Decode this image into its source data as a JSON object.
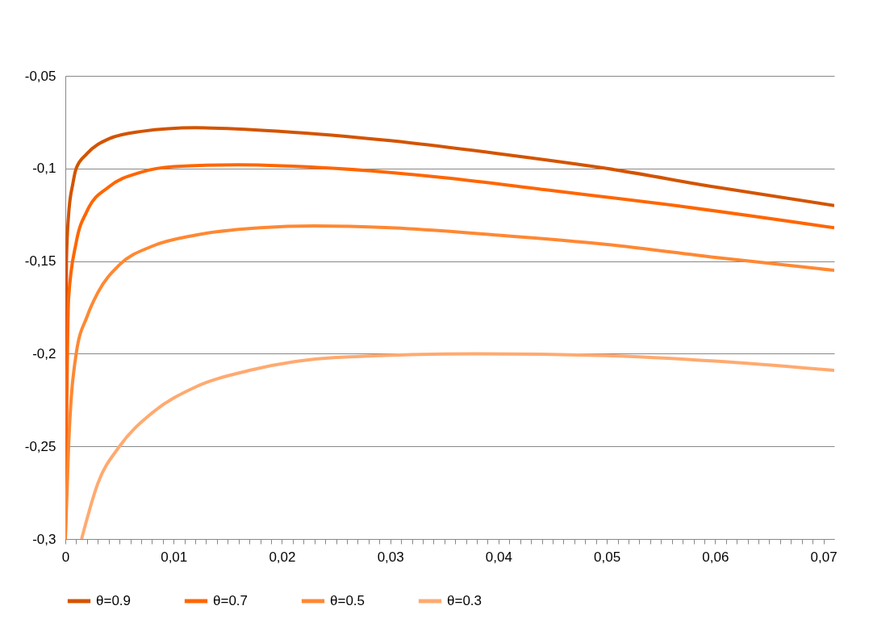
{
  "chart_data": {
    "type": "line",
    "xlim": [
      0,
      0.071
    ],
    "ylim": [
      -0.3,
      -0.05
    ],
    "xticks": [
      {
        "value": 0,
        "label": "0"
      },
      {
        "value": 0.001,
        "label": null
      },
      {
        "value": 0.002,
        "label": null
      },
      {
        "value": 0.003,
        "label": null
      },
      {
        "value": 0.004,
        "label": null
      },
      {
        "value": 0.005,
        "label": null
      },
      {
        "value": 0.006,
        "label": null
      },
      {
        "value": 0.007,
        "label": null
      },
      {
        "value": 0.008,
        "label": null
      },
      {
        "value": 0.009,
        "label": null
      },
      {
        "value": 0.01,
        "label": "0,01"
      },
      {
        "value": 0.011,
        "label": null
      },
      {
        "value": 0.012,
        "label": null
      },
      {
        "value": 0.013,
        "label": null
      },
      {
        "value": 0.014,
        "label": null
      },
      {
        "value": 0.015,
        "label": null
      },
      {
        "value": 0.016,
        "label": null
      },
      {
        "value": 0.017,
        "label": null
      },
      {
        "value": 0.018,
        "label": null
      },
      {
        "value": 0.019,
        "label": null
      },
      {
        "value": 0.02,
        "label": "0,02"
      },
      {
        "value": 0.021,
        "label": null
      },
      {
        "value": 0.022,
        "label": null
      },
      {
        "value": 0.023,
        "label": null
      },
      {
        "value": 0.024,
        "label": null
      },
      {
        "value": 0.025,
        "label": null
      },
      {
        "value": 0.026,
        "label": null
      },
      {
        "value": 0.027,
        "label": null
      },
      {
        "value": 0.028,
        "label": null
      },
      {
        "value": 0.029,
        "label": null
      },
      {
        "value": 0.03,
        "label": "0,03"
      },
      {
        "value": 0.031,
        "label": null
      },
      {
        "value": 0.032,
        "label": null
      },
      {
        "value": 0.033,
        "label": null
      },
      {
        "value": 0.034,
        "label": null
      },
      {
        "value": 0.035,
        "label": null
      },
      {
        "value": 0.036,
        "label": null
      },
      {
        "value": 0.037,
        "label": null
      },
      {
        "value": 0.038,
        "label": null
      },
      {
        "value": 0.039,
        "label": null
      },
      {
        "value": 0.04,
        "label": "0,04"
      },
      {
        "value": 0.041,
        "label": null
      },
      {
        "value": 0.042,
        "label": null
      },
      {
        "value": 0.043,
        "label": null
      },
      {
        "value": 0.044,
        "label": null
      },
      {
        "value": 0.045,
        "label": null
      },
      {
        "value": 0.046,
        "label": null
      },
      {
        "value": 0.047,
        "label": null
      },
      {
        "value": 0.048,
        "label": null
      },
      {
        "value": 0.049,
        "label": null
      },
      {
        "value": 0.05,
        "label": "0,05"
      },
      {
        "value": 0.051,
        "label": null
      },
      {
        "value": 0.052,
        "label": null
      },
      {
        "value": 0.053,
        "label": null
      },
      {
        "value": 0.054,
        "label": null
      },
      {
        "value": 0.055,
        "label": null
      },
      {
        "value": 0.056,
        "label": null
      },
      {
        "value": 0.057,
        "label": null
      },
      {
        "value": 0.058,
        "label": null
      },
      {
        "value": 0.059,
        "label": null
      },
      {
        "value": 0.06,
        "label": "0,06"
      },
      {
        "value": 0.061,
        "label": null
      },
      {
        "value": 0.062,
        "label": null
      },
      {
        "value": 0.063,
        "label": null
      },
      {
        "value": 0.064,
        "label": null
      },
      {
        "value": 0.065,
        "label": null
      },
      {
        "value": 0.066,
        "label": null
      },
      {
        "value": 0.067,
        "label": null
      },
      {
        "value": 0.068,
        "label": null
      },
      {
        "value": 0.069,
        "label": null
      },
      {
        "value": 0.07,
        "label": "0,07"
      }
    ],
    "yticks": [
      {
        "value": -0.3,
        "label": "-0,3"
      },
      {
        "value": -0.25,
        "label": "-0,25"
      },
      {
        "value": -0.2,
        "label": "-0,2"
      },
      {
        "value": -0.15,
        "label": "-0,15"
      },
      {
        "value": -0.1,
        "label": "-0,1"
      },
      {
        "value": -0.05,
        "label": "-0,05"
      }
    ],
    "grid": "y",
    "legend": "bottom",
    "marker": "none",
    "line_style": "solid",
    "series": [
      {
        "name": "θ=0.9",
        "color": "#d35400",
        "x": [
          0,
          0.0001,
          0.0003,
          0.0007,
          0.001,
          0.002,
          0.004,
          0.007,
          0.012,
          0.02,
          0.03,
          0.04,
          0.05,
          0.06,
          0.071
        ],
        "values": [
          -0.3,
          -0.15,
          -0.125,
          -0.108,
          -0.1,
          -0.092,
          -0.084,
          -0.08,
          -0.078,
          -0.08,
          -0.085,
          -0.092,
          -0.1,
          -0.11,
          -0.12
        ]
      },
      {
        "name": "θ=0.7",
        "color": "#ff6600",
        "x": [
          0,
          0.0003,
          0.001,
          0.002,
          0.004,
          0.007,
          0.01,
          0.016,
          0.025,
          0.035,
          0.045,
          0.055,
          0.071
        ],
        "values": [
          -0.3,
          -0.17,
          -0.14,
          -0.123,
          -0.11,
          -0.102,
          -0.099,
          -0.098,
          -0.1,
          -0.105,
          -0.112,
          -0.119,
          -0.132
        ]
      },
      {
        "name": "θ=0.5",
        "color": "#ff8833",
        "x": [
          0,
          0.0003,
          0.001,
          0.002,
          0.003,
          0.005,
          0.008,
          0.012,
          0.018,
          0.023,
          0.03,
          0.04,
          0.05,
          0.06,
          0.071
        ],
        "values": [
          -0.3,
          -0.25,
          -0.2,
          -0.18,
          -0.167,
          -0.152,
          -0.142,
          -0.136,
          -0.132,
          -0.131,
          -0.132,
          -0.136,
          -0.141,
          -0.148,
          -0.155
        ]
      },
      {
        "name": "θ=0.3",
        "color": "#ffaa70",
        "x": [
          0.0015,
          0.003,
          0.005,
          0.008,
          0.012,
          0.017,
          0.025,
          0.038,
          0.05,
          0.06,
          0.071
        ],
        "values": [
          -0.3,
          -0.27,
          -0.25,
          -0.232,
          -0.218,
          -0.209,
          -0.202,
          -0.2,
          -0.201,
          -0.204,
          -0.209
        ]
      }
    ]
  }
}
